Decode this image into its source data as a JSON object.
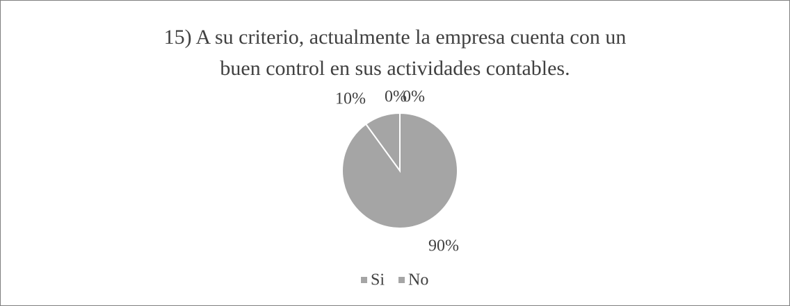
{
  "chart_data": {
    "type": "pie",
    "title": "15) A su criterio, actualmente la empresa cuenta con un buen control en sus actividades contables.",
    "categories": [
      "Si",
      "No",
      null,
      null
    ],
    "values": [
      90,
      10,
      0,
      0
    ],
    "value_labels": [
      "90%",
      "10%",
      "0%",
      "0%"
    ],
    "colors": [
      "#a5a5a5",
      "#a5a5a5",
      "#a5a5a5",
      "#a5a5a5"
    ],
    "legend": "bottom"
  }
}
